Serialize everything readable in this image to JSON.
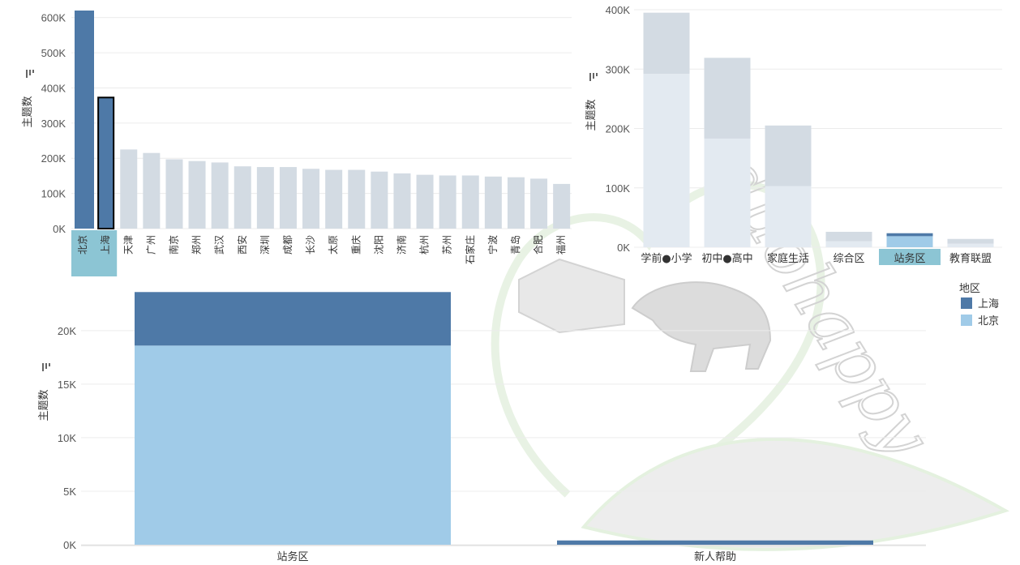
{
  "colors": {
    "shanghai": "#4e79a7",
    "beijing": "#a0cbe8",
    "faded": "#d3dbe3",
    "faded_light": "#e3eaf1",
    "highlight": "#8cc5d4"
  },
  "watermark": {
    "text": "duohappy"
  },
  "legend": {
    "title": "地区",
    "items": [
      {
        "label": "上海",
        "color": "#4e79a7"
      },
      {
        "label": "北京",
        "color": "#a0cbe8"
      }
    ]
  },
  "chart_data": [
    {
      "type": "bar",
      "ylabel": "主题数",
      "ylim": [
        0,
        620000
      ],
      "yticks": [
        "0K",
        "100K",
        "200K",
        "300K",
        "400K",
        "500K",
        "600K"
      ],
      "categories": [
        "北京",
        "上海",
        "天津",
        "广州",
        "南京",
        "郑州",
        "武汉",
        "西安",
        "深圳",
        "成都",
        "长沙",
        "太原",
        "重庆",
        "沈阳",
        "济南",
        "杭州",
        "苏州",
        "石家庄",
        "宁波",
        "青岛",
        "合肥",
        "福州"
      ],
      "values": [
        620000,
        375000,
        225000,
        215000,
        197000,
        192000,
        188000,
        177000,
        175000,
        175000,
        170000,
        167000,
        167000,
        162000,
        157000,
        153000,
        151000,
        151000,
        148000,
        146000,
        142000,
        127000
      ],
      "selected": [
        "北京",
        "上海"
      ]
    },
    {
      "type": "bar",
      "stacked": true,
      "ylabel": "主题数",
      "ylim": [
        0,
        400000
      ],
      "yticks": [
        "0K",
        "100K",
        "200K",
        "300K",
        "400K"
      ],
      "categories": [
        "学前●小学",
        "初中●高中",
        "家庭生活",
        "综合区",
        "站务区",
        "教育联盟"
      ],
      "selected": [
        "站务区"
      ],
      "series": [
        {
          "name": "北京",
          "values": [
            292000,
            183000,
            103000,
            10000,
            18600,
            6000
          ]
        },
        {
          "name": "上海",
          "values": [
            103000,
            136000,
            102000,
            16000,
            5000,
            8000
          ]
        }
      ]
    },
    {
      "type": "bar",
      "stacked": true,
      "ylabel": "主题数",
      "ylim": [
        0,
        24000
      ],
      "yticks": [
        "0K",
        "5K",
        "10K",
        "15K",
        "20K"
      ],
      "categories": [
        "站务区",
        "新人帮助"
      ],
      "series": [
        {
          "name": "北京",
          "values": [
            18600,
            0
          ]
        },
        {
          "name": "上海",
          "values": [
            5000,
            400
          ]
        }
      ]
    }
  ]
}
